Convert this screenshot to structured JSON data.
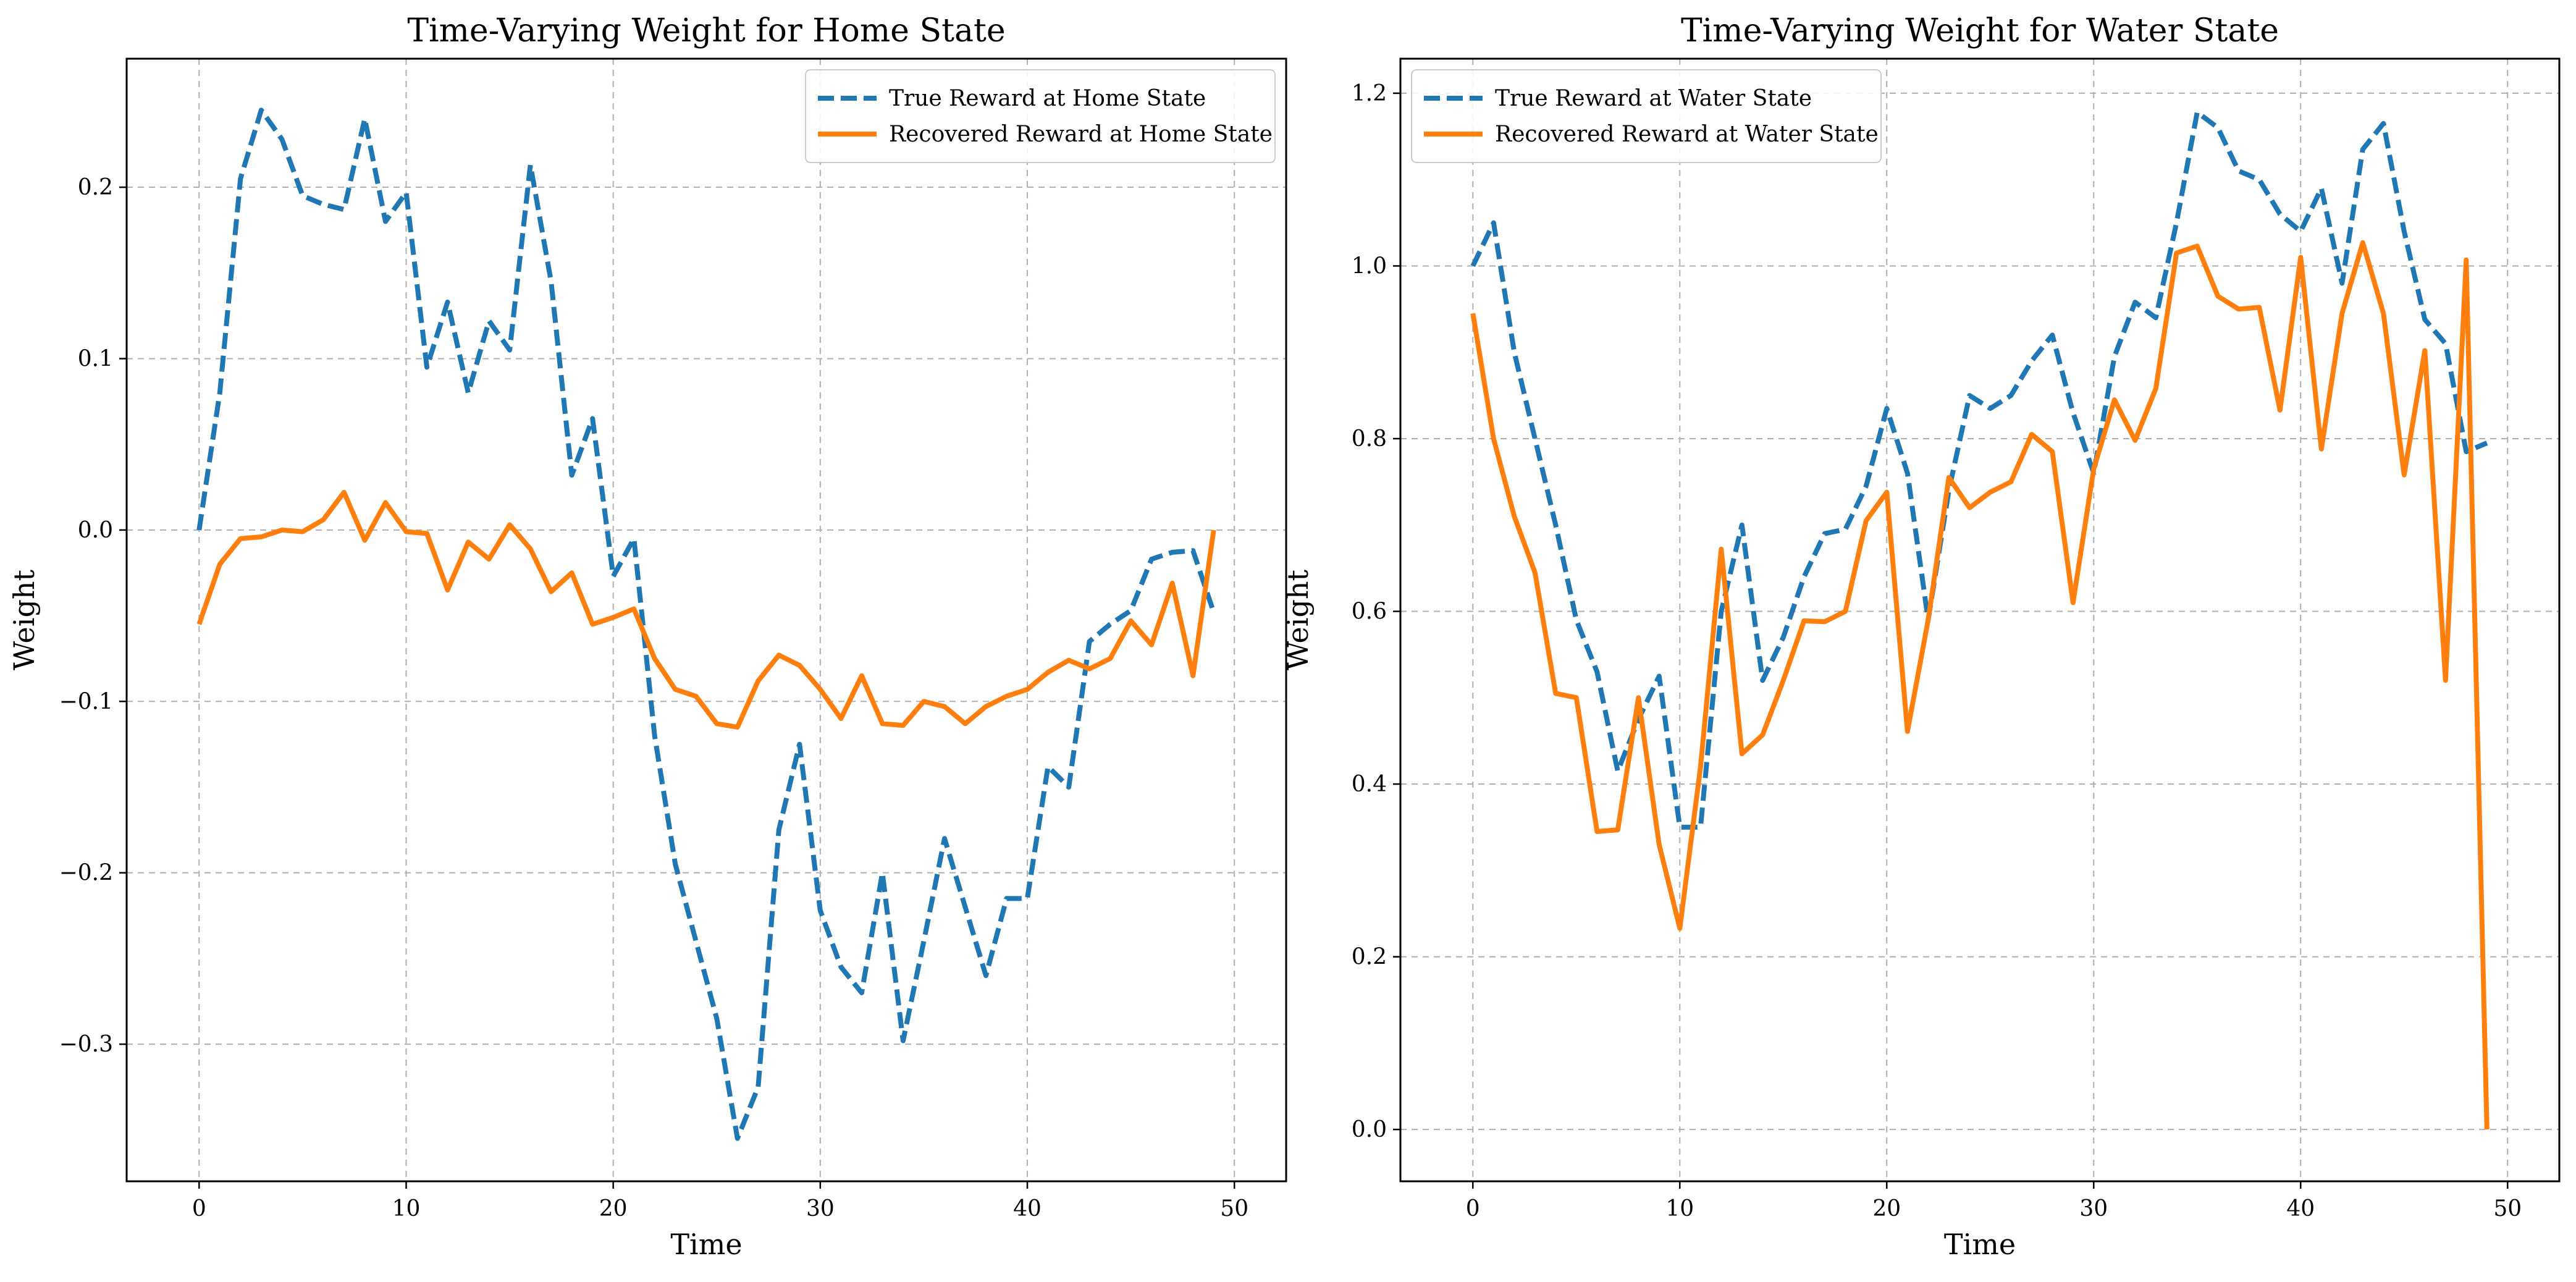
{
  "colors": {
    "true_series": "#1f77b4",
    "recovered_series": "#ff7f0e",
    "grid": "#b0b0b0"
  },
  "chart_data": [
    {
      "type": "line",
      "title": "Time-Varying Weight for Home State",
      "xlabel": "Time",
      "ylabel": "Weight",
      "xlim": [
        -3.5,
        52.5
      ],
      "ylim": [
        -0.38,
        0.275
      ],
      "xticks": [
        0,
        10,
        20,
        30,
        40,
        50
      ],
      "xtick_labels": [
        "0",
        "10",
        "20",
        "30",
        "40",
        "50"
      ],
      "yticks": [
        -0.3,
        -0.2,
        -0.1,
        0.0,
        0.1,
        0.2
      ],
      "ytick_labels": [
        "−0.3",
        "−0.2",
        "−0.1",
        "0.0",
        "0.1",
        "0.2"
      ],
      "grid": true,
      "legend_position": "top-right",
      "x": [
        0,
        1,
        2,
        3,
        4,
        5,
        6,
        7,
        8,
        9,
        10,
        11,
        12,
        13,
        14,
        15,
        16,
        17,
        18,
        19,
        20,
        21,
        22,
        23,
        24,
        25,
        26,
        27,
        28,
        29,
        30,
        31,
        32,
        33,
        34,
        35,
        36,
        37,
        38,
        39,
        40,
        41,
        42,
        43,
        44,
        45,
        46,
        47,
        48,
        49
      ],
      "series": [
        {
          "name": "True Reward at Home State",
          "style": "dashed",
          "values": [
            0.0,
            0.08,
            0.205,
            0.245,
            0.228,
            0.195,
            0.19,
            0.187,
            0.24,
            0.18,
            0.197,
            0.095,
            0.133,
            0.08,
            0.122,
            0.105,
            0.213,
            0.145,
            0.032,
            0.065,
            -0.027,
            -0.005,
            -0.12,
            -0.195,
            -0.24,
            -0.285,
            -0.355,
            -0.325,
            -0.175,
            -0.125,
            -0.222,
            -0.255,
            -0.27,
            -0.2,
            -0.298,
            -0.24,
            -0.18,
            -0.22,
            -0.26,
            -0.215,
            -0.215,
            -0.138,
            -0.15,
            -0.065,
            -0.055,
            -0.047,
            -0.017,
            -0.013,
            -0.012,
            -0.048
          ]
        },
        {
          "name": "Recovered Reward at Home State",
          "style": "solid",
          "values": [
            -0.055,
            -0.02,
            -0.005,
            -0.004,
            0.0,
            -0.001,
            0.006,
            0.022,
            -0.006,
            0.016,
            -0.001,
            -0.002,
            -0.035,
            -0.007,
            -0.017,
            0.003,
            -0.011,
            -0.036,
            -0.025,
            -0.055,
            -0.051,
            -0.046,
            -0.075,
            -0.093,
            -0.097,
            -0.113,
            -0.115,
            -0.088,
            -0.073,
            -0.079,
            -0.093,
            -0.11,
            -0.085,
            -0.113,
            -0.114,
            -0.1,
            -0.103,
            -0.113,
            -0.103,
            -0.097,
            -0.093,
            -0.083,
            -0.076,
            -0.081,
            -0.075,
            -0.053,
            -0.067,
            -0.031,
            -0.085,
            0.0
          ]
        }
      ]
    },
    {
      "type": "line",
      "title": "Time-Varying Weight for Water State",
      "xlabel": "Time",
      "ylabel": "Weight",
      "xlim": [
        -3.5,
        52.5
      ],
      "ylim": [
        -0.06,
        1.24
      ],
      "xticks": [
        0,
        10,
        20,
        30,
        40,
        50
      ],
      "xtick_labels": [
        "0",
        "10",
        "20",
        "30",
        "40",
        "50"
      ],
      "yticks": [
        0.0,
        0.2,
        0.4,
        0.6,
        0.8,
        1.0,
        1.2
      ],
      "ytick_labels": [
        "0.0",
        "0.2",
        "0.4",
        "0.6",
        "0.8",
        "1.0",
        "1.2"
      ],
      "grid": true,
      "legend_position": "top-left",
      "x": [
        0,
        1,
        2,
        3,
        4,
        5,
        6,
        7,
        8,
        9,
        10,
        11,
        12,
        13,
        14,
        15,
        16,
        17,
        18,
        19,
        20,
        21,
        22,
        23,
        24,
        25,
        26,
        27,
        28,
        29,
        30,
        31,
        32,
        33,
        34,
        35,
        36,
        37,
        38,
        39,
        40,
        41,
        42,
        43,
        44,
        45,
        46,
        47,
        48,
        49
      ],
      "series": [
        {
          "name": "True Reward at Water State",
          "style": "dashed",
          "values": [
            1.0,
            1.05,
            0.9,
            0.8,
            0.7,
            0.59,
            0.53,
            0.415,
            0.475,
            0.525,
            0.35,
            0.35,
            0.6,
            0.7,
            0.52,
            0.57,
            0.64,
            0.69,
            0.695,
            0.745,
            0.835,
            0.76,
            0.59,
            0.74,
            0.85,
            0.835,
            0.85,
            0.89,
            0.92,
            0.83,
            0.76,
            0.895,
            0.958,
            0.94,
            1.05,
            1.178,
            1.16,
            1.11,
            1.1,
            1.06,
            1.04,
            1.09,
            0.98,
            1.135,
            1.165,
            1.04,
            0.938,
            0.91,
            0.785,
            0.795
          ]
        },
        {
          "name": "Recovered Reward at Water State",
          "style": "solid",
          "values": [
            0.945,
            0.8,
            0.71,
            0.645,
            0.505,
            0.5,
            0.345,
            0.347,
            0.5,
            0.33,
            0.233,
            0.42,
            0.672,
            0.435,
            0.457,
            0.52,
            0.589,
            0.588,
            0.6,
            0.705,
            0.738,
            0.461,
            0.59,
            0.755,
            0.72,
            0.738,
            0.75,
            0.805,
            0.785,
            0.61,
            0.765,
            0.845,
            0.798,
            0.858,
            1.015,
            1.023,
            0.965,
            0.95,
            0.952,
            0.833,
            1.01,
            0.788,
            0.945,
            1.027,
            0.945,
            0.758,
            0.902,
            0.52,
            1.007,
            0.0
          ]
        }
      ]
    }
  ]
}
